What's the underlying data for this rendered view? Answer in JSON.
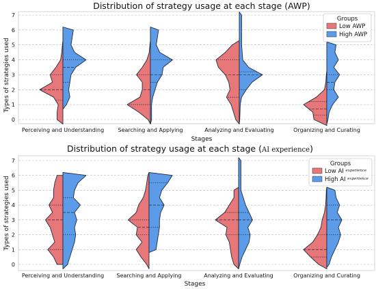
{
  "chart_data": [
    {
      "type": "violin",
      "title": "Distribution of strategy usage at each stage (AWP)",
      "xlabel": "Stages",
      "ylabel": "Types of strategies used",
      "ylim": [
        0,
        7
      ],
      "yticks": [
        "0",
        "1",
        "2",
        "3",
        "4",
        "5",
        "6",
        "7"
      ],
      "grid": "horizontal",
      "legend": {
        "title": "Groups",
        "placement": "top-right"
      },
      "categories": [
        "Perceiving and Understanding",
        "Searching and Applying",
        "Analyzing and Evaluating",
        "Organizing and Curating"
      ],
      "series": [
        {
          "name": "Low AWP",
          "color": "#e8777a",
          "quartiles": [
            [
              1.3,
              2,
              3
            ],
            [
              1,
              2,
              3
            ],
            [
              1.5,
              3,
              4
            ],
            [
              0.3,
              0.7,
              1.2
            ]
          ],
          "profiles": [
            [
              [
                -0.3,
                0.0
              ],
              [
                0,
                0.25
              ],
              [
                0.5,
                0.25
              ],
              [
                1,
                0.2
              ],
              [
                1.5,
                0.4
              ],
              [
                2,
                1.0
              ],
              [
                2.5,
                0.45
              ],
              [
                3,
                0.55
              ],
              [
                3.5,
                0.3
              ],
              [
                4,
                0.1
              ],
              [
                4.5,
                0.05
              ],
              [
                5,
                0.02
              ],
              [
                5.3,
                0.0
              ]
            ],
            [
              [
                -0.3,
                0.0
              ],
              [
                0,
                0.1
              ],
              [
                0.5,
                0.5
              ],
              [
                1,
                1.0
              ],
              [
                1.5,
                0.45
              ],
              [
                2,
                0.35
              ],
              [
                2.5,
                0.35
              ],
              [
                3,
                0.6
              ],
              [
                3.5,
                0.35
              ],
              [
                4,
                0.15
              ],
              [
                4.5,
                0.05
              ],
              [
                5,
                0.02
              ],
              [
                5.3,
                0.0
              ]
            ],
            [
              [
                -0.3,
                0.0
              ],
              [
                0,
                0.15
              ],
              [
                0.5,
                0.25
              ],
              [
                1,
                0.35
              ],
              [
                1.5,
                0.55
              ],
              [
                2,
                0.4
              ],
              [
                2.5,
                0.45
              ],
              [
                3,
                0.6
              ],
              [
                3.5,
                0.9
              ],
              [
                4,
                1.0
              ],
              [
                4.5,
                0.6
              ],
              [
                5,
                0.3
              ],
              [
                5.3,
                0.0
              ]
            ],
            [
              [
                -0.4,
                0.0
              ],
              [
                0,
                0.55
              ],
              [
                0.5,
                0.6
              ],
              [
                1,
                1.0
              ],
              [
                1.5,
                0.45
              ],
              [
                2,
                0.1
              ],
              [
                2.5,
                0.04
              ],
              [
                3,
                0.02
              ],
              [
                3.3,
                0.0
              ]
            ]
          ]
        },
        {
          "name": "High AWP",
          "color": "#5b9be8",
          "quartiles": [
            [
              2.5,
              3.5,
              4
            ],
            [
              2.5,
              3,
              4
            ],
            [
              2,
              3,
              3.2
            ],
            [
              2,
              2.5,
              3
            ]
          ],
          "profiles": [
            [
              [
                0.7,
                0.0
              ],
              [
                1,
                0.15
              ],
              [
                1.5,
                0.3
              ],
              [
                2,
                0.25
              ],
              [
                2.5,
                0.3
              ],
              [
                3,
                0.35
              ],
              [
                3.5,
                0.55
              ],
              [
                4,
                1.0
              ],
              [
                4.5,
                0.5
              ],
              [
                5,
                0.35
              ],
              [
                5.5,
                0.4
              ],
              [
                6,
                0.45
              ],
              [
                6.2,
                0.0
              ]
            ],
            [
              [
                -0.3,
                0.0
              ],
              [
                0,
                0.05
              ],
              [
                0.5,
                0.05
              ],
              [
                1,
                0.05
              ],
              [
                1.5,
                0.1
              ],
              [
                2,
                0.2
              ],
              [
                2.5,
                0.3
              ],
              [
                3,
                0.5
              ],
              [
                3.5,
                0.55
              ],
              [
                4,
                0.95
              ],
              [
                4.5,
                0.4
              ],
              [
                5,
                0.25
              ],
              [
                5.5,
                0.3
              ],
              [
                6,
                0.35
              ],
              [
                6.2,
                0.0
              ]
            ],
            [
              [
                -0.3,
                0.0
              ],
              [
                0,
                0.02
              ],
              [
                1,
                0.04
              ],
              [
                1.5,
                0.1
              ],
              [
                2,
                0.3
              ],
              [
                2.5,
                0.55
              ],
              [
                3,
                1.0
              ],
              [
                3.5,
                0.4
              ],
              [
                4,
                0.15
              ],
              [
                5,
                0.1
              ],
              [
                6,
                0.1
              ],
              [
                7,
                0.1
              ],
              [
                7.2,
                0.0
              ]
            ],
            [
              [
                -0.3,
                0.0
              ],
              [
                0,
                0.05
              ],
              [
                0.5,
                0.1
              ],
              [
                1,
                0.25
              ],
              [
                1.5,
                0.5
              ],
              [
                2,
                0.3
              ],
              [
                2.5,
                0.35
              ],
              [
                3,
                0.55
              ],
              [
                3.5,
                0.3
              ],
              [
                4,
                0.5
              ],
              [
                4.5,
                0.35
              ],
              [
                5,
                0.4
              ],
              [
                5.2,
                0.0
              ]
            ]
          ]
        }
      ]
    },
    {
      "type": "violin",
      "title": "Distribution of strategy usage at each stage (",
      "title_tag": "AI experience",
      "title_close": ")",
      "xlabel": "Stages",
      "ylabel": "Types of strategies used",
      "ylim": [
        0,
        7
      ],
      "yticks": [
        "0",
        "1",
        "2",
        "3",
        "4",
        "5",
        "6",
        "7"
      ],
      "grid": "horizontal",
      "legend": {
        "title": "Groups",
        "placement": "top-right"
      },
      "categories": [
        "Perceiving and Understanding",
        "Searching and Applying",
        "Analyzing and Evaluating",
        "Organizing and Curating"
      ],
      "series": [
        {
          "name": "Low AI",
          "name_tag": "experience",
          "color": "#e8777a",
          "quartiles": [
            [
              1,
              3,
              4
            ],
            [
              2,
              2.5,
              3
            ],
            [
              2,
              3,
              3.5
            ],
            [
              0.5,
              1,
              2
            ]
          ],
          "profiles": [
            [
              [
                0,
                0.25
              ],
              [
                0.5,
                0.4
              ],
              [
                1,
                0.65
              ],
              [
                1.5,
                0.35
              ],
              [
                2,
                0.45
              ],
              [
                2.5,
                0.55
              ],
              [
                3,
                0.75
              ],
              [
                3.5,
                0.45
              ],
              [
                4,
                0.6
              ],
              [
                4.5,
                0.4
              ],
              [
                5,
                0.4
              ],
              [
                5.5,
                0.35
              ],
              [
                6,
                0.25
              ]
            ],
            [
              [
                -0.3,
                0.0
              ],
              [
                0,
                0.1
              ],
              [
                0.5,
                0.35
              ],
              [
                1,
                0.55
              ],
              [
                1.5,
                0.3
              ],
              [
                2,
                0.55
              ],
              [
                2.5,
                0.5
              ],
              [
                3,
                0.9
              ],
              [
                3.5,
                0.55
              ],
              [
                4,
                0.45
              ],
              [
                4.5,
                0.25
              ],
              [
                5,
                0.15
              ],
              [
                5.5,
                0.1
              ],
              [
                6,
                0.05
              ],
              [
                6.2,
                0.0
              ]
            ],
            [
              [
                -0.3,
                0.0
              ],
              [
                0,
                0.2
              ],
              [
                0.5,
                0.3
              ],
              [
                1,
                0.35
              ],
              [
                1.5,
                0.4
              ],
              [
                2,
                0.55
              ],
              [
                2.5,
                0.5
              ],
              [
                3,
                1.0
              ],
              [
                3.5,
                0.6
              ],
              [
                4,
                0.4
              ],
              [
                4.5,
                0.2
              ],
              [
                5,
                0.2
              ],
              [
                5.2,
                0.0
              ]
            ],
            [
              [
                -0.3,
                0.0
              ],
              [
                0,
                0.35
              ],
              [
                0.5,
                0.7
              ],
              [
                1,
                1.0
              ],
              [
                1.5,
                0.6
              ],
              [
                2,
                0.4
              ],
              [
                2.5,
                0.25
              ],
              [
                3,
                0.2
              ],
              [
                3.5,
                0.1
              ],
              [
                4,
                0.05
              ],
              [
                4.5,
                0.03
              ],
              [
                5,
                0.02
              ],
              [
                5.2,
                0.0
              ]
            ]
          ]
        },
        {
          "name": "High AI",
          "name_tag": "experience",
          "color": "#5b9be8",
          "quartiles": [
            [
              2,
              3.5,
              4.5
            ],
            [
              2.5,
              4,
              5.5
            ],
            [
              2,
              3,
              3.5
            ],
            [
              2,
              3,
              4
            ]
          ],
          "profiles": [
            [
              [
                -0.3,
                0.0
              ],
              [
                0,
                0.2
              ],
              [
                0.5,
                0.3
              ],
              [
                1,
                0.4
              ],
              [
                1.5,
                0.5
              ],
              [
                2,
                0.55
              ],
              [
                2.5,
                0.5
              ],
              [
                3,
                0.6
              ],
              [
                3.5,
                0.5
              ],
              [
                4,
                0.75
              ],
              [
                4.5,
                0.45
              ],
              [
                5,
                0.5
              ],
              [
                5.5,
                0.65
              ],
              [
                6,
                1.0
              ],
              [
                6.2,
                0.0
              ]
            ],
            [
              [
                0.8,
                0.0
              ],
              [
                1,
                0.3
              ],
              [
                1.5,
                0.35
              ],
              [
                2,
                0.4
              ],
              [
                2.5,
                0.45
              ],
              [
                3,
                0.45
              ],
              [
                3.5,
                0.5
              ],
              [
                4,
                0.65
              ],
              [
                4.5,
                0.45
              ],
              [
                5,
                0.55
              ],
              [
                5.5,
                0.8
              ],
              [
                6,
                1.0
              ],
              [
                6.2,
                0.0
              ]
            ],
            [
              [
                -0.3,
                0.0
              ],
              [
                0,
                0.05
              ],
              [
                0.5,
                0.15
              ],
              [
                1,
                0.3
              ],
              [
                1.5,
                0.45
              ],
              [
                2,
                0.5
              ],
              [
                2.5,
                0.4
              ],
              [
                3,
                0.6
              ],
              [
                3.5,
                0.45
              ],
              [
                4,
                0.3
              ],
              [
                5,
                0.1
              ],
              [
                6,
                0.1
              ],
              [
                7,
                0.1
              ],
              [
                7.2,
                0.0
              ]
            ],
            [
              [
                -0.2,
                0.0
              ],
              [
                0,
                0.1
              ],
              [
                0.5,
                0.2
              ],
              [
                1,
                0.35
              ],
              [
                1.5,
                0.5
              ],
              [
                2,
                0.6
              ],
              [
                2.5,
                0.5
              ],
              [
                3,
                0.65
              ],
              [
                3.5,
                0.45
              ],
              [
                4,
                0.55
              ],
              [
                4.5,
                0.4
              ],
              [
                5,
                0.35
              ],
              [
                5.2,
                0.0
              ]
            ]
          ]
        }
      ]
    }
  ]
}
